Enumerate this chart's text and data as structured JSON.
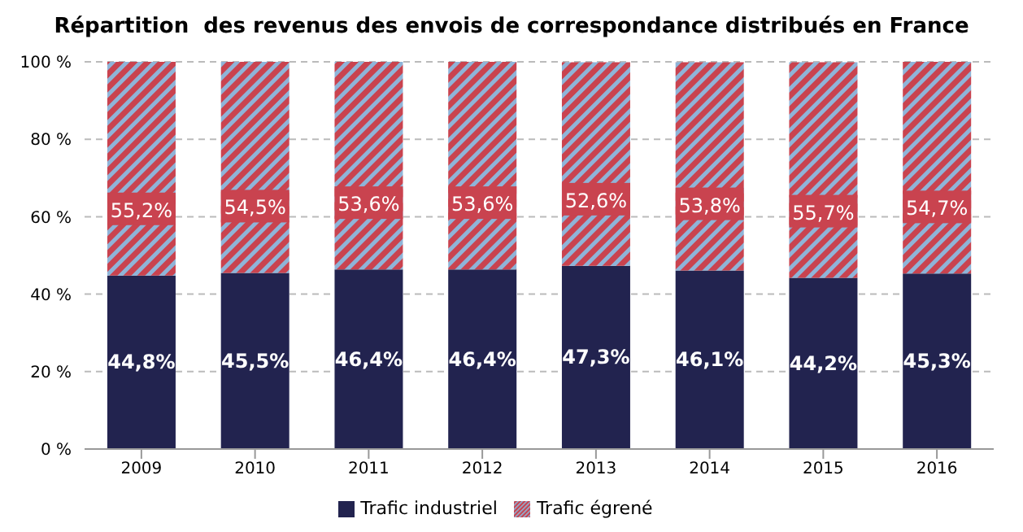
{
  "chart_data": {
    "type": "bar",
    "stacked": true,
    "title": "Répartition  des revenus des envois de correspondance distribués en France",
    "categories": [
      "2009",
      "2010",
      "2011",
      "2012",
      "2013",
      "2014",
      "2015",
      "2016"
    ],
    "series": [
      {
        "name": "Trafic industriel",
        "color": "#22234f",
        "values": [
          44.8,
          45.5,
          46.4,
          46.4,
          47.3,
          46.1,
          44.2,
          45.3
        ],
        "value_labels": [
          "44,8%",
          "45,5%",
          "46,4%",
          "46,4%",
          "47,3%",
          "46,1%",
          "44,2%",
          "45,3%"
        ]
      },
      {
        "name": "Trafic égrené",
        "color": "#c9434f",
        "values": [
          55.2,
          54.5,
          53.6,
          53.6,
          52.6,
          53.8,
          55.7,
          54.7
        ],
        "value_labels": [
          "55,2%",
          "54,5%",
          "53,6%",
          "53,6%",
          "52,6%",
          "53,8%",
          "55,7%",
          "54,7%"
        ]
      }
    ],
    "ylim": [
      0,
      100
    ],
    "yticks": [
      {
        "value": 0,
        "label": "0 %"
      },
      {
        "value": 20,
        "label": "20 %"
      },
      {
        "value": 40,
        "label": "40 %"
      },
      {
        "value": 60,
        "label": "60 %"
      },
      {
        "value": 80,
        "label": "80 %"
      },
      {
        "value": 100,
        "label": "100 %"
      }
    ],
    "grid": "y",
    "legend": "bottom"
  }
}
